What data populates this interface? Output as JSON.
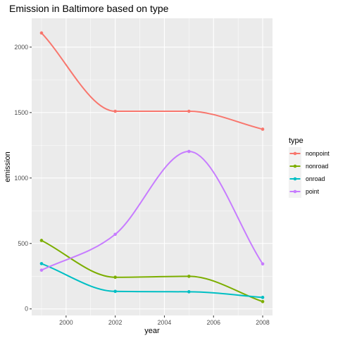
{
  "chart_data": {
    "type": "line",
    "title": "Emission in Baltimore based on type",
    "xlabel": "year",
    "ylabel": "emission",
    "xlim": [
      1998.6,
      2008.4
    ],
    "ylim": [
      -50,
      2220
    ],
    "x_ticks": [
      2000,
      2002,
      2004,
      2006,
      2008
    ],
    "x_tick_labels": [
      "2000",
      "2002",
      "2004",
      "2006",
      "2008"
    ],
    "y_ticks": [
      0,
      500,
      1000,
      1500,
      2000
    ],
    "y_tick_labels": [
      "0",
      "500",
      "1000",
      "1500",
      "2000"
    ],
    "grid": true,
    "legend_position": "right",
    "legend_title": "type",
    "x": [
      1999,
      2002,
      2005,
      2008
    ],
    "series": [
      {
        "name": "nonpoint",
        "values": [
          2108,
          1510,
          1510,
          1373
        ],
        "color": "#F8766D"
      },
      {
        "name": "nonroad",
        "values": [
          523,
          242,
          249,
          56
        ],
        "color": "#7CAE00"
      },
      {
        "name": "onroad",
        "values": [
          346,
          134,
          131,
          88
        ],
        "color": "#00BFC4"
      },
      {
        "name": "point",
        "values": [
          296,
          570,
          1203,
          344
        ],
        "color": "#C77CFF"
      }
    ]
  }
}
